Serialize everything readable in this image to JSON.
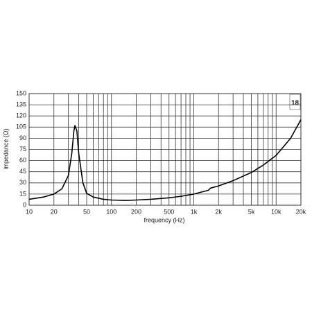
{
  "chart_data": {
    "type": "line",
    "x_label": "frequency (Hz)",
    "y_label": "impedance (Ω)",
    "logo": "18",
    "x_log": true,
    "grid": true,
    "xlim": [
      10,
      20000
    ],
    "ylim": [
      0,
      150
    ],
    "xticks": [
      10,
      20,
      50,
      100,
      200,
      500,
      {
        "value": 1000,
        "label": "1k"
      },
      {
        "value": 2000,
        "label": "2k"
      },
      {
        "value": 5000,
        "label": "5k"
      },
      {
        "value": 10000,
        "label": "10k"
      },
      {
        "value": 20000,
        "label": "20k"
      }
    ],
    "x_minor_ticks": [
      30,
      40,
      60,
      70,
      80,
      90,
      300,
      400,
      600,
      700,
      800,
      900,
      3000,
      4000,
      6000,
      7000,
      8000,
      9000
    ],
    "yticks": [
      0,
      15,
      30,
      45,
      60,
      75,
      90,
      105,
      120,
      135,
      150
    ],
    "series": [
      {
        "color": "#000000",
        "x": [
          10,
          15,
          20,
          25,
          30,
          33,
          35,
          36,
          38,
          40,
          45,
          50,
          60,
          80,
          100,
          150,
          200,
          300,
          500,
          700,
          1000,
          1500,
          1600,
          2000,
          3000,
          5000,
          7000,
          10000,
          15000,
          20000
        ],
        "values": [
          8,
          11,
          15,
          22,
          40,
          70,
          100,
          107,
          100,
          70,
          30,
          16,
          11,
          8,
          7,
          6.5,
          7,
          8,
          10,
          12,
          15,
          20,
          23,
          26,
          33,
          44,
          54,
          67,
          90,
          115
        ]
      }
    ]
  }
}
